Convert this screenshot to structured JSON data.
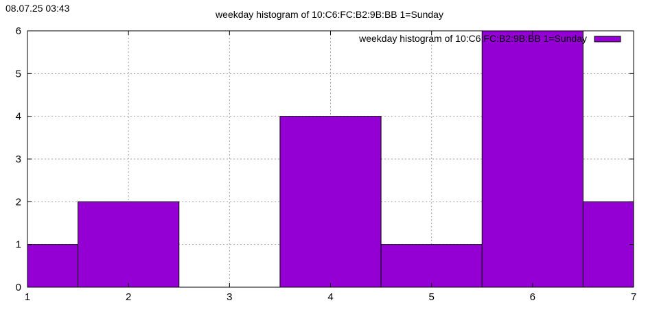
{
  "timestamp": "08.07.25 03:43",
  "chart_data": {
    "type": "bar",
    "title": "weekday histogram of 10:C6:FC:B2:9B:BB 1=Sunday",
    "xlabel": "",
    "ylabel": "",
    "xlim": [
      1,
      7
    ],
    "ylim": [
      0,
      6
    ],
    "xticks": [
      1,
      2,
      3,
      4,
      5,
      6,
      7
    ],
    "yticks": [
      0,
      1,
      2,
      3,
      4,
      5,
      6
    ],
    "bar_width": 1,
    "x": [
      1,
      2,
      3,
      4,
      5,
      6,
      7
    ],
    "values": [
      1,
      2,
      0,
      4,
      1,
      6,
      2
    ],
    "series": [
      {
        "name": "weekday histogram of 10:C6:FC:B2:9B:BB 1=Sunday",
        "color": "#9400d3",
        "values": [
          1,
          2,
          0,
          4,
          1,
          6,
          2
        ]
      }
    ],
    "grid": true,
    "legend": "top-right"
  }
}
